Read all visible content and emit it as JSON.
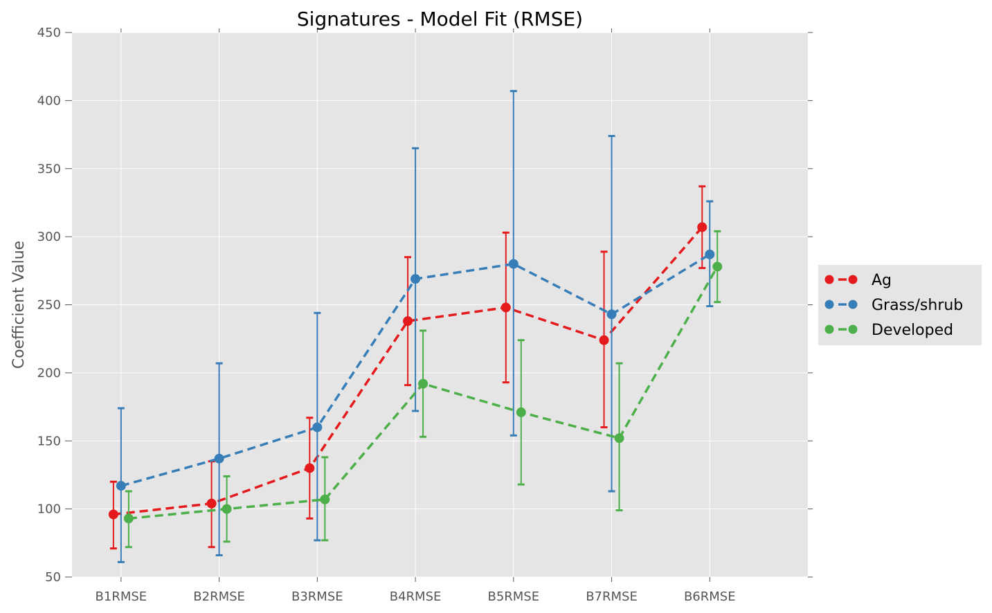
{
  "chart_data": {
    "type": "line",
    "title": "Signatures - Model Fit (RMSE)",
    "xlabel": "",
    "ylabel": "Coefficient Value",
    "categories": [
      "B1RMSE",
      "B2RMSE",
      "B3RMSE",
      "B4RMSE",
      "B5RMSE",
      "B7RMSE",
      "B6RMSE"
    ],
    "ylim": [
      50,
      450
    ],
    "yticks": [
      50,
      100,
      150,
      200,
      250,
      300,
      350,
      400,
      450
    ],
    "grid": true,
    "line_style": "dashed",
    "marker": "circle",
    "error_bars": true,
    "legend_position": "right-outside",
    "background": "#e5e5e5",
    "series": [
      {
        "name": "Ag",
        "color": "#e41a1c",
        "values": [
          96,
          104,
          130,
          238,
          248,
          224,
          307
        ],
        "err_low": [
          71,
          72,
          93,
          191,
          193,
          160,
          277
        ],
        "err_high": [
          120,
          135,
          167,
          285,
          303,
          289,
          337
        ]
      },
      {
        "name": "Grass/shrub",
        "color": "#377eb8",
        "values": [
          117,
          137,
          160,
          269,
          280,
          243,
          287
        ],
        "err_low": [
          61,
          66,
          77,
          172,
          154,
          113,
          249
        ],
        "err_high": [
          174,
          207,
          244,
          365,
          407,
          374,
          326
        ]
      },
      {
        "name": "Developed",
        "color": "#4daf4a",
        "values": [
          93,
          100,
          107,
          192,
          171,
          152,
          278
        ],
        "err_low": [
          72,
          76,
          77,
          153,
          118,
          99,
          252
        ],
        "err_high": [
          113,
          124,
          138,
          231,
          224,
          207,
          304
        ]
      }
    ]
  }
}
